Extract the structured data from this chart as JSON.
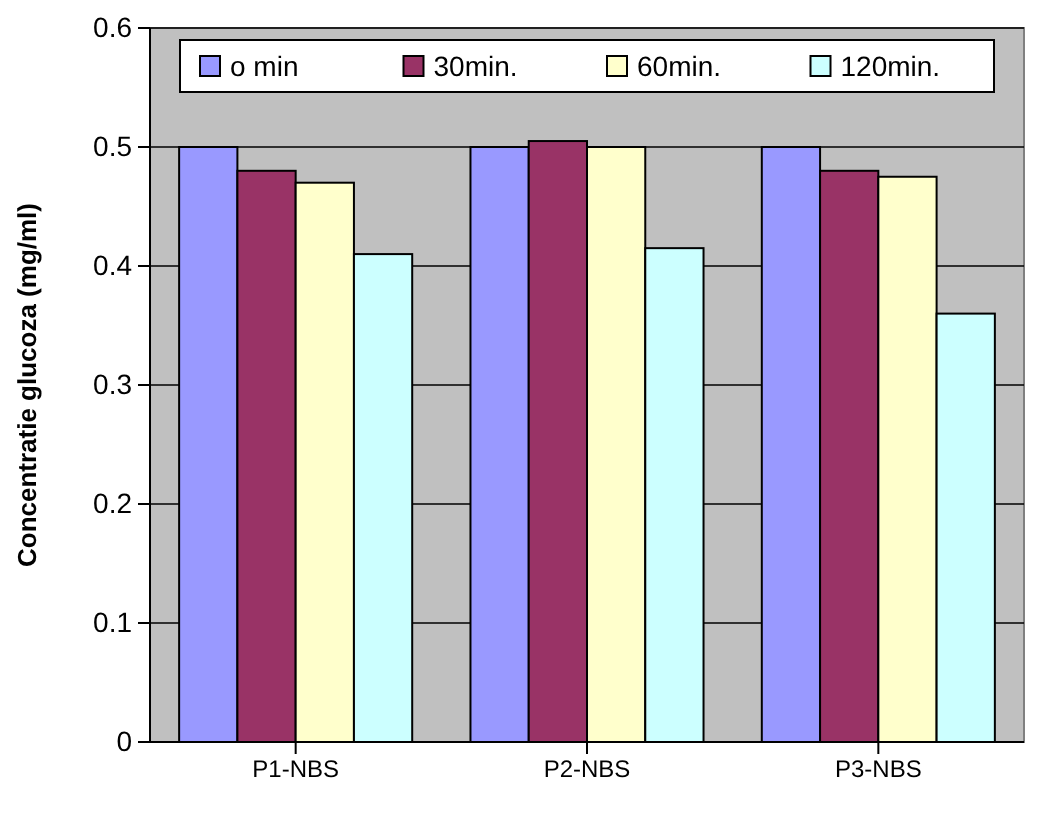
{
  "chart_data": {
    "type": "bar",
    "ylabel": "Concentratie glucoza (mg/ml)",
    "categories": [
      "P1-NBS",
      "P2-NBS",
      "P3-NBS"
    ],
    "series": [
      {
        "name": "o min",
        "color": "#9999ff",
        "values": [
          0.5,
          0.5,
          0.5
        ]
      },
      {
        "name": "30min.",
        "color": "#993366",
        "values": [
          0.48,
          0.505,
          0.48
        ]
      },
      {
        "name": "60min.",
        "color": "#ffffcc",
        "values": [
          0.47,
          0.5,
          0.475
        ]
      },
      {
        "name": "120min.",
        "color": "#ccffff",
        "values": [
          0.41,
          0.415,
          0.36
        ]
      }
    ],
    "ylim": [
      0,
      0.6
    ],
    "yticks": [
      0,
      0.1,
      0.2,
      0.3,
      0.4,
      0.5,
      0.6
    ],
    "grid": "y",
    "legend": "top"
  }
}
